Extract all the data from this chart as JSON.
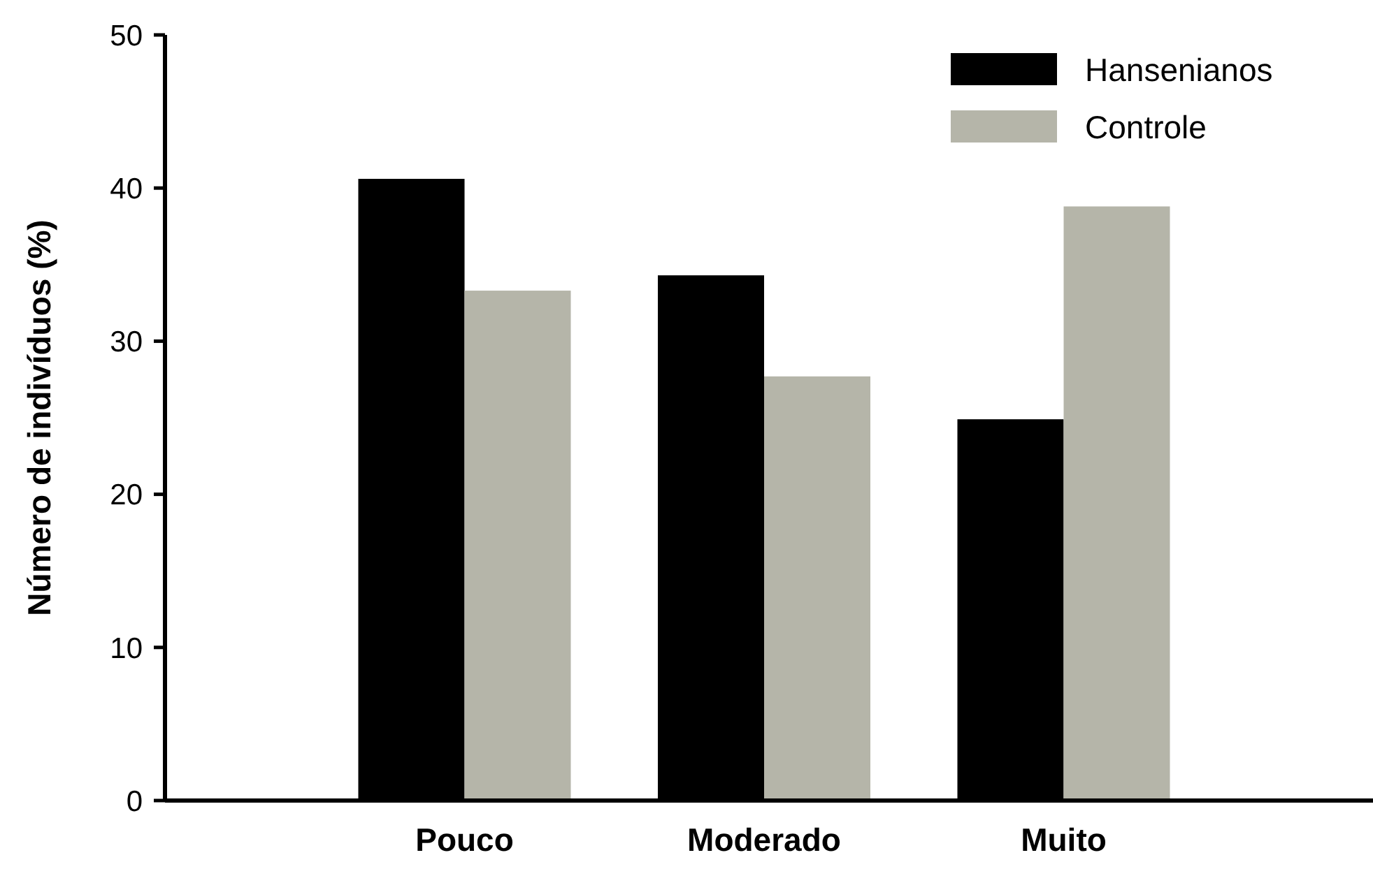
{
  "chart_data": {
    "type": "bar",
    "ylabel": "Número de indivíduos (%)",
    "categories": [
      "Pouco",
      "Moderado",
      "Muito"
    ],
    "series": [
      {
        "name": "Hansenianos",
        "color": "#000000",
        "values": [
          40.6,
          34.3,
          24.9
        ]
      },
      {
        "name": "Controle",
        "color": "#b5b5a9",
        "values": [
          33.3,
          27.7,
          38.8
        ]
      }
    ],
    "ylim": [
      0,
      50
    ],
    "yticks": [
      0,
      10,
      20,
      30,
      40,
      50
    ],
    "grid": false,
    "legend": "top right"
  }
}
